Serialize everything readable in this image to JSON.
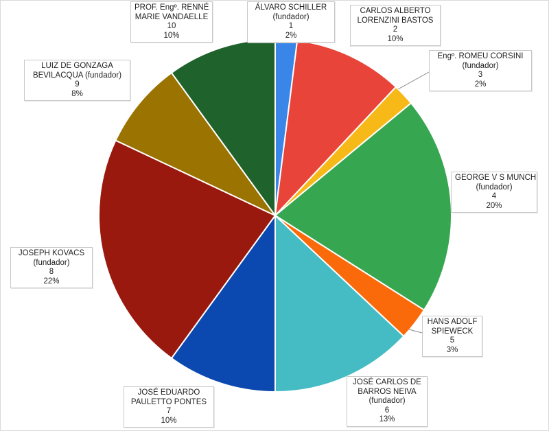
{
  "chart_data": {
    "type": "pie",
    "title": "",
    "start_angle_deg": 0,
    "direction": "clockwise",
    "slices": [
      {
        "name_lines": [
          "ÁLVARO SCHILLER",
          "(fundador)"
        ],
        "count": "1",
        "value": 2,
        "value_label": "2%",
        "color": "#3a86e8"
      },
      {
        "name_lines": [
          "CARLOS ALBERTO",
          "LORENZINI  BASTOS"
        ],
        "count": "2",
        "value": 10,
        "value_label": "10%",
        "color": "#e8443a"
      },
      {
        "name_lines": [
          "Engº. ROMEU  CORSINI",
          "(fundador)"
        ],
        "count": "3",
        "value": 2,
        "value_label": "2%",
        "color": "#f7b918"
      },
      {
        "name_lines": [
          "GEORGE  V S MUNCH",
          "(fundador)"
        ],
        "count": "4",
        "value": 20,
        "value_label": "20%",
        "color": "#37a651"
      },
      {
        "name_lines": [
          "HANS ADOLF",
          "SPIEWECK"
        ],
        "count": "5",
        "value": 3,
        "value_label": "3%",
        "color": "#fa6a0a"
      },
      {
        "name_lines": [
          "JOSÉ CARLOS DE",
          "BARROS NEIVA",
          "(fundador)"
        ],
        "count": "6",
        "value": 13,
        "value_label": "13%",
        "color": "#45bcc4"
      },
      {
        "name_lines": [
          "JOSÉ EDUARDO",
          "PAULETTO  PONTES"
        ],
        "count": "7",
        "value": 10,
        "value_label": "10%",
        "color": "#0b48b0"
      },
      {
        "name_lines": [
          "JOSEPH  KOVACS",
          "(fundador)"
        ],
        "count": "8",
        "value": 22,
        "value_label": "22%",
        "color": "#9a190e"
      },
      {
        "name_lines": [
          "LUIZ DE GONZAGA",
          "BEVILACQUA  (fundador)"
        ],
        "count": "9",
        "value": 8,
        "value_label": "8%",
        "color": "#9a7300"
      },
      {
        "name_lines": [
          "PROF.  Engº. RENNÉ",
          "MARIE  VANDAELLE"
        ],
        "count": "10",
        "value": 10,
        "value_label": "10%",
        "color": "#1f622c"
      }
    ]
  }
}
